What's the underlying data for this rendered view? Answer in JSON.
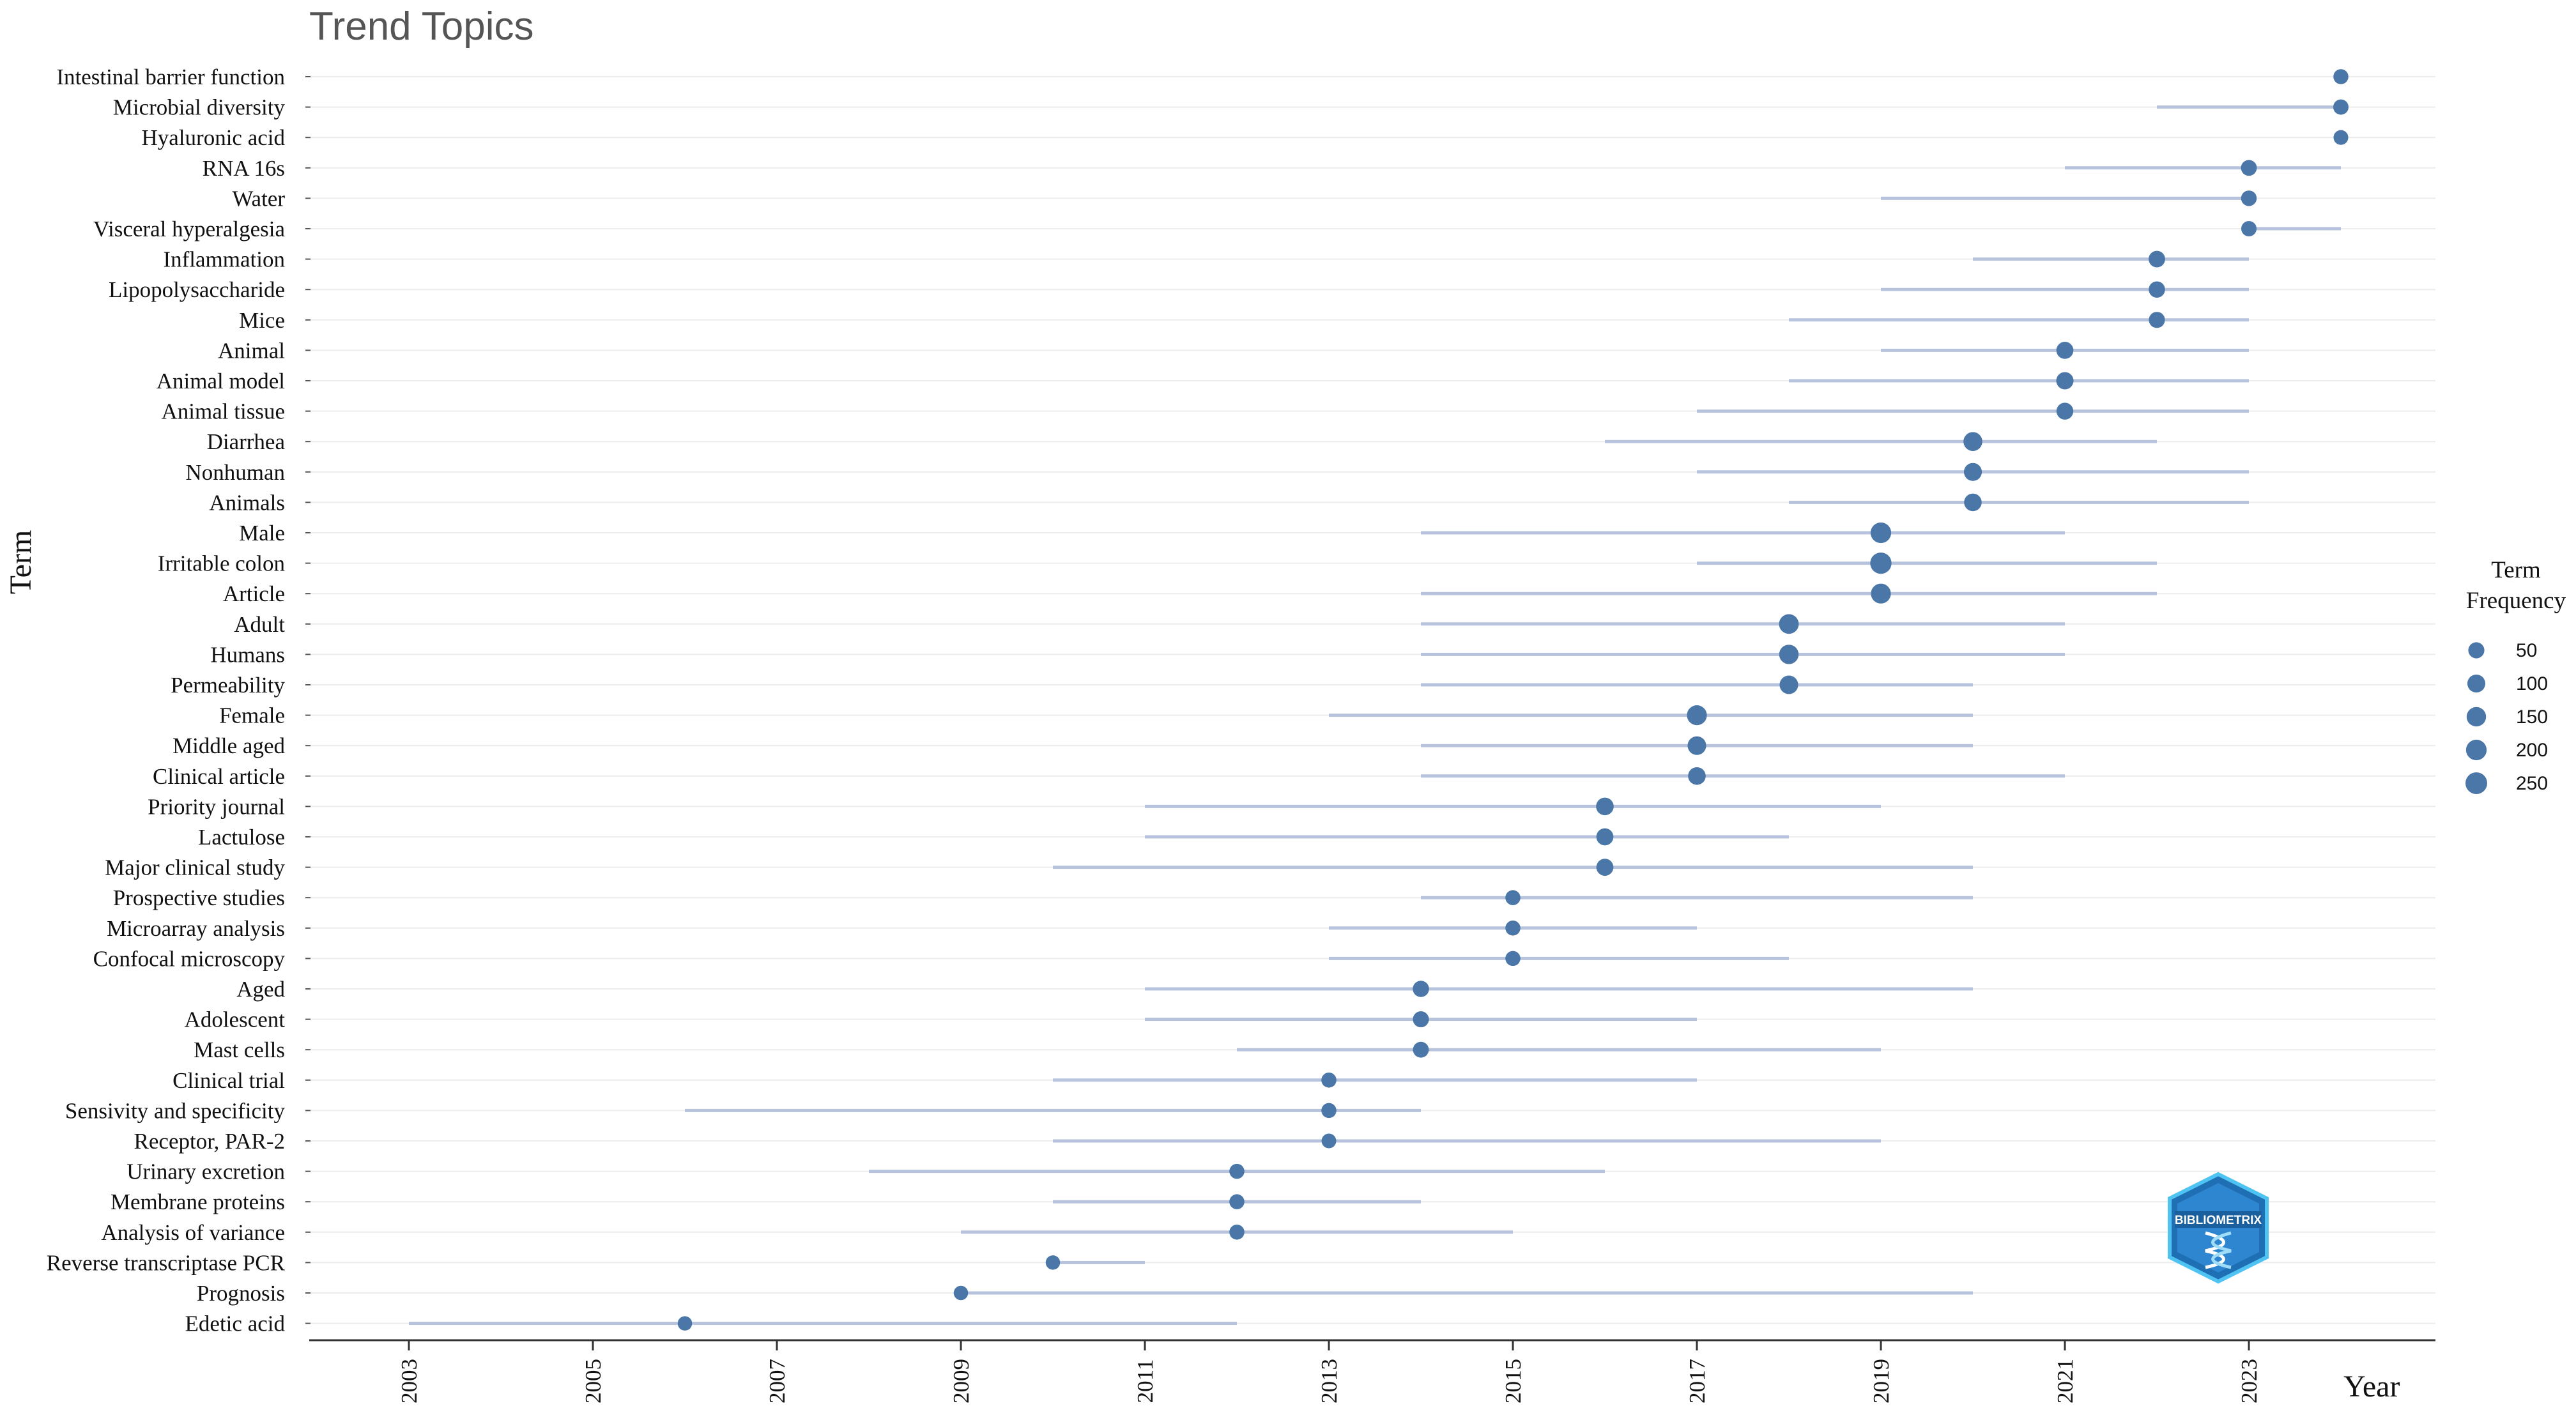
{
  "chart_data": {
    "type": "scatter",
    "title": "Trend Topics",
    "xlabel": "Year",
    "ylabel": "Term",
    "xlim": [
      2002,
      2025
    ],
    "x_ticks": [
      2003,
      2005,
      2007,
      2009,
      2011,
      2013,
      2015,
      2017,
      2019,
      2021,
      2023
    ],
    "grid": true,
    "legend": {
      "title_lines": [
        "Term",
        "Frequency"
      ],
      "placement": "right",
      "sizes": [
        50,
        100,
        150,
        200,
        250
      ]
    },
    "colors": {
      "point": "#4a76a8",
      "range": "#b7c3dc",
      "grid": "#ececec"
    },
    "terms": [
      {
        "name": "Intestinal barrier function",
        "q1": 2024,
        "median": 2024,
        "q3": 2024,
        "freq": 30
      },
      {
        "name": "Microbial diversity",
        "q1": 2022,
        "median": 2024,
        "q3": 2024,
        "freq": 35
      },
      {
        "name": "Hyaluronic acid",
        "q1": 2024,
        "median": 2024,
        "q3": 2024,
        "freq": 25
      },
      {
        "name": "RNA 16s",
        "q1": 2021,
        "median": 2023,
        "q3": 2024,
        "freq": 45
      },
      {
        "name": "Water",
        "q1": 2019,
        "median": 2023,
        "q3": 2023,
        "freq": 40
      },
      {
        "name": "Visceral hyperalgesia",
        "q1": 2023,
        "median": 2023,
        "q3": 2024,
        "freq": 35
      },
      {
        "name": "Inflammation",
        "q1": 2020,
        "median": 2022,
        "q3": 2023,
        "freq": 60
      },
      {
        "name": "Lipopolysaccharide",
        "q1": 2019,
        "median": 2022,
        "q3": 2023,
        "freq": 55
      },
      {
        "name": "Mice",
        "q1": 2018,
        "median": 2022,
        "q3": 2023,
        "freq": 50
      },
      {
        "name": "Animal",
        "q1": 2019,
        "median": 2021,
        "q3": 2023,
        "freq": 75
      },
      {
        "name": "Animal model",
        "q1": 2018,
        "median": 2021,
        "q3": 2023,
        "freq": 80
      },
      {
        "name": "Animal tissue",
        "q1": 2017,
        "median": 2021,
        "q3": 2023,
        "freq": 70
      },
      {
        "name": "Diarrhea",
        "q1": 2016,
        "median": 2020,
        "q3": 2022,
        "freq": 130
      },
      {
        "name": "Nonhuman",
        "q1": 2017,
        "median": 2020,
        "q3": 2023,
        "freq": 100
      },
      {
        "name": "Animals",
        "q1": 2018,
        "median": 2020,
        "q3": 2023,
        "freq": 90
      },
      {
        "name": "Male",
        "q1": 2014,
        "median": 2019,
        "q3": 2021,
        "freq": 200
      },
      {
        "name": "Irritable colon",
        "q1": 2017,
        "median": 2019,
        "q3": 2022,
        "freq": 230
      },
      {
        "name": "Article",
        "q1": 2014,
        "median": 2019,
        "q3": 2022,
        "freq": 170
      },
      {
        "name": "Adult",
        "q1": 2014,
        "median": 2018,
        "q3": 2021,
        "freq": 160
      },
      {
        "name": "Humans",
        "q1": 2014,
        "median": 2018,
        "q3": 2021,
        "freq": 150
      },
      {
        "name": "Permeability",
        "q1": 2014,
        "median": 2018,
        "q3": 2020,
        "freq": 120
      },
      {
        "name": "Female",
        "q1": 2013,
        "median": 2017,
        "q3": 2020,
        "freq": 170
      },
      {
        "name": "Middle aged",
        "q1": 2014,
        "median": 2017,
        "q3": 2020,
        "freq": 120
      },
      {
        "name": "Clinical article",
        "q1": 2014,
        "median": 2017,
        "q3": 2021,
        "freq": 90
      },
      {
        "name": "Priority journal",
        "q1": 2011,
        "median": 2016,
        "q3": 2019,
        "freq": 90
      },
      {
        "name": "Lactulose",
        "q1": 2011,
        "median": 2016,
        "q3": 2018,
        "freq": 75
      },
      {
        "name": "Major clinical study",
        "q1": 2010,
        "median": 2016,
        "q3": 2020,
        "freq": 75
      },
      {
        "name": "Prospective studies",
        "q1": 2014,
        "median": 2015,
        "q3": 2020,
        "freq": 30
      },
      {
        "name": "Microarray analysis",
        "q1": 2013,
        "median": 2015,
        "q3": 2017,
        "freq": 30
      },
      {
        "name": "Confocal microscopy",
        "q1": 2013,
        "median": 2015,
        "q3": 2018,
        "freq": 30
      },
      {
        "name": "Aged",
        "q1": 2011,
        "median": 2014,
        "q3": 2020,
        "freq": 55
      },
      {
        "name": "Adolescent",
        "q1": 2011,
        "median": 2014,
        "q3": 2017,
        "freq": 50
      },
      {
        "name": "Mast cells",
        "q1": 2012,
        "median": 2014,
        "q3": 2019,
        "freq": 45
      },
      {
        "name": "Clinical trial",
        "q1": 2010,
        "median": 2013,
        "q3": 2017,
        "freq": 30
      },
      {
        "name": "Sensivity and specificity",
        "q1": 2006,
        "median": 2013,
        "q3": 2014,
        "freq": 30
      },
      {
        "name": "Receptor, PAR-2",
        "q1": 2010,
        "median": 2013,
        "q3": 2019,
        "freq": 25
      },
      {
        "name": "Urinary excretion",
        "q1": 2008,
        "median": 2012,
        "q3": 2016,
        "freq": 30
      },
      {
        "name": "Membrane proteins",
        "q1": 2010,
        "median": 2012,
        "q3": 2014,
        "freq": 30
      },
      {
        "name": "Analysis of variance",
        "q1": 2009,
        "median": 2012,
        "q3": 2015,
        "freq": 30
      },
      {
        "name": "Reverse transcriptase PCR",
        "q1": 2010,
        "median": 2010,
        "q3": 2011,
        "freq": 20
      },
      {
        "name": "Prognosis",
        "q1": 2009,
        "median": 2009,
        "q3": 2020,
        "freq": 20
      },
      {
        "name": "Edetic acid",
        "q1": 2003,
        "median": 2006,
        "q3": 2012,
        "freq": 20
      }
    ]
  },
  "logo": {
    "text": "BIBLIOMETRIX"
  }
}
